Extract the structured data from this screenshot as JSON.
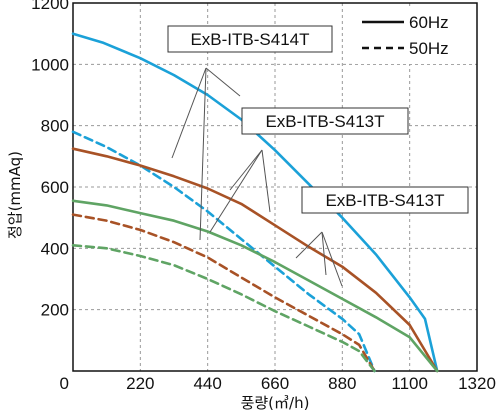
{
  "chart_data": {
    "type": "line",
    "xlabel": "풍량(㎥/h)",
    "ylabel": "정압(mmAq)",
    "xlim": [
      0,
      1320
    ],
    "ylim": [
      0,
      1200
    ],
    "x_ticks": [
      0,
      220,
      440,
      660,
      880,
      1100,
      1320
    ],
    "y_ticks": [
      0,
      200,
      400,
      600,
      800,
      1000,
      1200
    ],
    "grid": true,
    "legend_position": "top-right",
    "legend": [
      {
        "label": "60Hz",
        "dash": "solid"
      },
      {
        "label": "50Hz",
        "dash": "dashed"
      }
    ],
    "annotations": [
      {
        "text": "ExB-ITB-S414T"
      },
      {
        "text": "ExB-ITB-S413T"
      },
      {
        "text": "ExB-ITB-S413T"
      }
    ],
    "series": [
      {
        "color": "#1ba1d8",
        "dash": "solid",
        "x": [
          0,
          100,
          220,
          330,
          440,
          550,
          660,
          770,
          880,
          990,
          1100,
          1150,
          1190
        ],
        "y": [
          1100,
          1070,
          1020,
          965,
          900,
          820,
          720,
          610,
          500,
          380,
          240,
          170,
          0
        ]
      },
      {
        "color": "#1ba1d8",
        "dash": "dashed",
        "x": [
          0,
          110,
          220,
          330,
          440,
          550,
          660,
          770,
          880,
          935,
          985
        ],
        "y": [
          780,
          730,
          670,
          600,
          520,
          430,
          340,
          250,
          170,
          120,
          0
        ]
      },
      {
        "color": "#a85226",
        "dash": "solid",
        "x": [
          0,
          110,
          220,
          330,
          440,
          550,
          660,
          770,
          880,
          990,
          1100,
          1190
        ],
        "y": [
          725,
          700,
          670,
          635,
          595,
          545,
          475,
          405,
          340,
          255,
          150,
          0
        ]
      },
      {
        "color": "#a85226",
        "dash": "dashed",
        "x": [
          0,
          110,
          220,
          330,
          440,
          550,
          660,
          770,
          880,
          935,
          985
        ],
        "y": [
          510,
          490,
          460,
          420,
          370,
          305,
          240,
          180,
          120,
          85,
          0
        ]
      },
      {
        "color": "#5fa464",
        "dash": "solid",
        "x": [
          0,
          110,
          220,
          330,
          440,
          550,
          660,
          770,
          880,
          990,
          1100,
          1190
        ],
        "y": [
          555,
          540,
          515,
          490,
          455,
          410,
          355,
          295,
          235,
          175,
          110,
          0
        ]
      },
      {
        "color": "#5fa464",
        "dash": "dashed",
        "x": [
          0,
          110,
          220,
          330,
          440,
          550,
          660,
          770,
          880,
          935,
          985
        ],
        "y": [
          410,
          400,
          375,
          345,
          300,
          250,
          195,
          145,
          95,
          65,
          0
        ]
      }
    ]
  }
}
